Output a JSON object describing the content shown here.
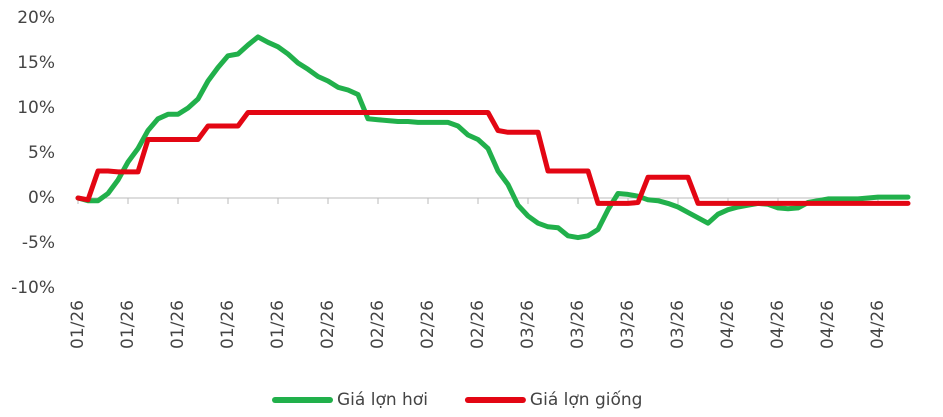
{
  "chart_data": {
    "type": "line",
    "categories": [
      "01/26",
      null,
      null,
      null,
      null,
      "01/26",
      null,
      null,
      null,
      null,
      "01/26",
      null,
      null,
      null,
      null,
      "01/26",
      null,
      null,
      null,
      null,
      "01/26",
      null,
      null,
      null,
      null,
      "02/26",
      null,
      null,
      null,
      null,
      "02/26",
      null,
      null,
      null,
      null,
      "02/26",
      null,
      null,
      null,
      null,
      "02/26",
      null,
      null,
      null,
      null,
      "03/26",
      null,
      null,
      null,
      null,
      "03/26",
      null,
      null,
      null,
      null,
      "03/26",
      null,
      null,
      null,
      null,
      "03/26",
      null,
      null,
      null,
      null,
      "04/26",
      null,
      null,
      null,
      null,
      "04/26",
      null,
      null,
      null,
      null,
      "04/26",
      null,
      null,
      null,
      null,
      "04/26",
      null,
      null,
      null
    ],
    "series": [
      {
        "name": "Giá lợn hơi",
        "color": "#21b04b",
        "values": [
          0,
          -0.3,
          -0.3,
          0.5,
          2,
          4,
          5.5,
          7.5,
          8.8,
          9.3,
          9.3,
          10,
          11,
          13,
          14.5,
          15.8,
          16,
          17,
          17.9,
          17.3,
          16.8,
          16,
          15,
          14.3,
          13.5,
          13,
          12.3,
          12,
          11.5,
          8.8,
          8.7,
          8.6,
          8.5,
          8.5,
          8.4,
          8.4,
          8.4,
          8.4,
          8,
          7,
          6.5,
          5.5,
          3,
          1.5,
          -0.8,
          -2,
          -2.8,
          -3.2,
          -3.3,
          -4.2,
          -4.4,
          -4.2,
          -3.5,
          -1.3,
          0.5,
          0.4,
          0.2,
          -0.2,
          -0.3,
          -0.6,
          -1,
          -1.6,
          -2.2,
          -2.8,
          -1.8,
          -1.3,
          -1,
          -0.8,
          -0.6,
          -0.7,
          -1.1,
          -1.2,
          -1.1,
          -0.5,
          -0.3,
          -0.1,
          -0.1,
          -0.1,
          -0.1,
          0,
          0.1,
          0.1,
          0.1,
          0.1
        ]
      },
      {
        "name": "Giá lợn giống",
        "color": "#e30613",
        "values": [
          0,
          -0.2,
          3,
          3,
          2.9,
          2.9,
          2.9,
          6.5,
          6.5,
          6.5,
          6.5,
          6.5,
          6.5,
          8,
          8,
          8,
          8,
          9.5,
          9.5,
          9.5,
          9.5,
          9.5,
          9.5,
          9.5,
          9.5,
          9.5,
          9.5,
          9.5,
          9.5,
          9.5,
          9.5,
          9.5,
          9.5,
          9.5,
          9.5,
          9.5,
          9.5,
          9.5,
          9.5,
          9.5,
          9.5,
          9.5,
          7.5,
          7.3,
          7.3,
          7.3,
          7.3,
          3,
          3,
          3,
          3,
          3,
          -0.6,
          -0.6,
          -0.6,
          -0.6,
          -0.5,
          2.3,
          2.3,
          2.3,
          2.3,
          2.3,
          -0.6,
          -0.6,
          -0.6,
          -0.6,
          -0.6,
          -0.6,
          -0.6,
          -0.6,
          -0.6,
          -0.6,
          -0.6,
          -0.6,
          -0.6,
          -0.6,
          -0.6,
          -0.6,
          -0.6,
          -0.6,
          -0.6,
          -0.6,
          -0.6,
          -0.6
        ]
      }
    ],
    "ylim": [
      -10,
      20
    ],
    "yticks": [
      {
        "value": -10,
        "label": "-10%"
      },
      {
        "value": -5,
        "label": "-5%"
      },
      {
        "value": 0,
        "label": "0%"
      },
      {
        "value": 5,
        "label": "5%"
      },
      {
        "value": 10,
        "label": "10%"
      },
      {
        "value": 15,
        "label": "15%"
      },
      {
        "value": 20,
        "label": "20%"
      }
    ],
    "legend": "bottom"
  }
}
